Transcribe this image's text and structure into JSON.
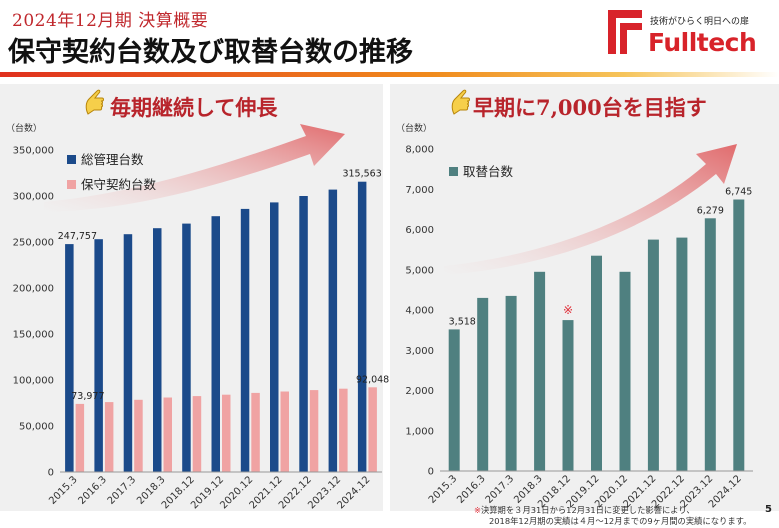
{
  "header": {
    "subtitle": "2024年12月期 決算概要",
    "title": "保守契約台数及び取替台数の推移",
    "logo_tagline": "技術がひらく明日への扉",
    "logo_name": "Fulltech"
  },
  "left_panel": {
    "headline": "毎期継続して伸長"
  },
  "right_panel": {
    "headline": "早期に7,000台を目指す"
  },
  "chart_data": [
    {
      "type": "bar",
      "unit_label": "（台数）",
      "categories": [
        "2015.3",
        "2016.3",
        "2017.3",
        "2018.3",
        "2018.12",
        "2019.12",
        "2020.12",
        "2021.12",
        "2022.12",
        "2023.12",
        "2024.12"
      ],
      "ylim": [
        0,
        350000
      ],
      "yticks": [
        0,
        50000,
        100000,
        150000,
        200000,
        250000,
        300000,
        350000
      ],
      "ytick_labels": [
        "0",
        "50,000",
        "100,000",
        "150,000",
        "200,000",
        "250,000",
        "300,000",
        "350,000"
      ],
      "legend": "top-left",
      "series": [
        {
          "name": "総管理台数",
          "color": "#1b4a8a",
          "values": [
            247757,
            253000,
            258500,
            265000,
            270000,
            278000,
            286000,
            293000,
            300000,
            307000,
            315563
          ]
        },
        {
          "name": "保守契約台数",
          "color": "#f0a3a3",
          "values": [
            73977,
            76000,
            78500,
            81000,
            82500,
            84000,
            86000,
            87500,
            89000,
            90500,
            92048
          ]
        }
      ],
      "data_labels": [
        {
          "series": 0,
          "index": 0,
          "text": "247,757"
        },
        {
          "series": 0,
          "index": 10,
          "text": "315,563"
        },
        {
          "series": 1,
          "index": 0,
          "text": "73,977"
        },
        {
          "series": 1,
          "index": 10,
          "text": "92,048"
        }
      ]
    },
    {
      "type": "bar",
      "unit_label": "（台数）",
      "categories": [
        "2015.3",
        "2016.3",
        "2017.3",
        "2018.3",
        "2018.12",
        "2019.12",
        "2020.12",
        "2021.12",
        "2022.12",
        "2023.12",
        "2024.12"
      ],
      "ylim": [
        0,
        8000
      ],
      "yticks": [
        0,
        1000,
        2000,
        3000,
        4000,
        5000,
        6000,
        7000,
        8000
      ],
      "ytick_labels": [
        "0",
        "1,000",
        "2,000",
        "3,000",
        "4,000",
        "5,000",
        "6,000",
        "7,000",
        "8,000"
      ],
      "legend": "top-left",
      "series": [
        {
          "name": "取替台数",
          "color": "#4f8080",
          "values": [
            3518,
            4300,
            4350,
            4950,
            3750,
            5350,
            4950,
            5750,
            5800,
            6279,
            6745
          ]
        }
      ],
      "data_labels": [
        {
          "series": 0,
          "index": 0,
          "text": "3,518"
        },
        {
          "series": 0,
          "index": 9,
          "text": "6,279"
        },
        {
          "series": 0,
          "index": 10,
          "text": "6,745"
        }
      ],
      "marker": {
        "index": 4,
        "text": "※",
        "color": "#e0303a"
      }
    }
  ],
  "footnote": {
    "mark": "※",
    "line1": "決算期を３月31日から12月31日に変更した影響により、",
    "line2": "2018年12月期の実績は４月～12月までの9ヶ月間の実績になります。"
  },
  "page_number": "5",
  "colors": {
    "accent_red": "#c0282d",
    "arrow": "#e06466"
  }
}
